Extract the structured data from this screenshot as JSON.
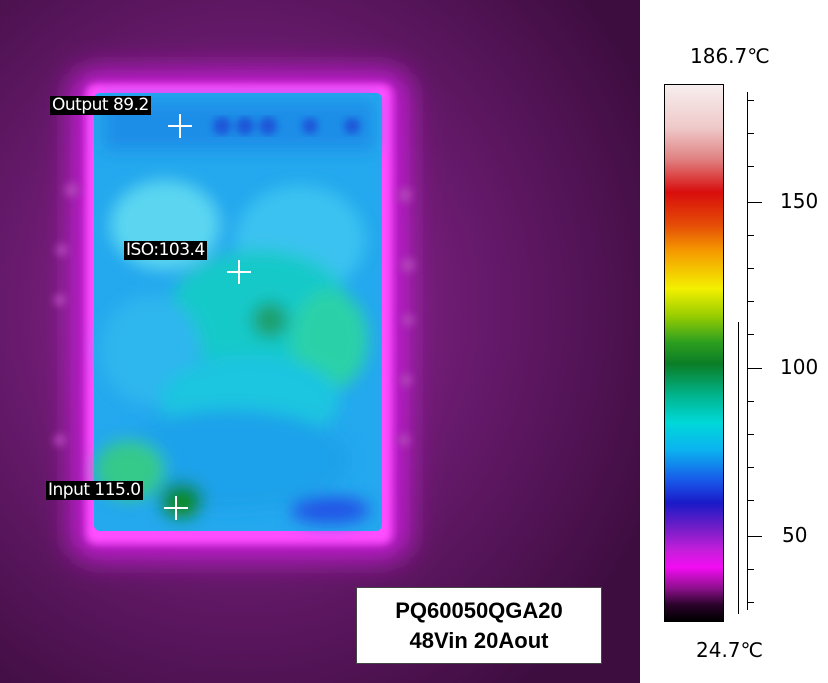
{
  "markers": [
    {
      "label": "Output 89.2",
      "name": "output"
    },
    {
      "label": "ISO:103.4",
      "name": "iso"
    },
    {
      "label": "Input 115.0",
      "name": "input"
    }
  ],
  "caption": {
    "line1": "PQ60050QGA20",
    "line2": "48Vin 20Aout"
  },
  "scale": {
    "max_label": "186.7℃",
    "min_label": "24.7℃",
    "ticks": [
      "150",
      "100",
      "50"
    ]
  }
}
